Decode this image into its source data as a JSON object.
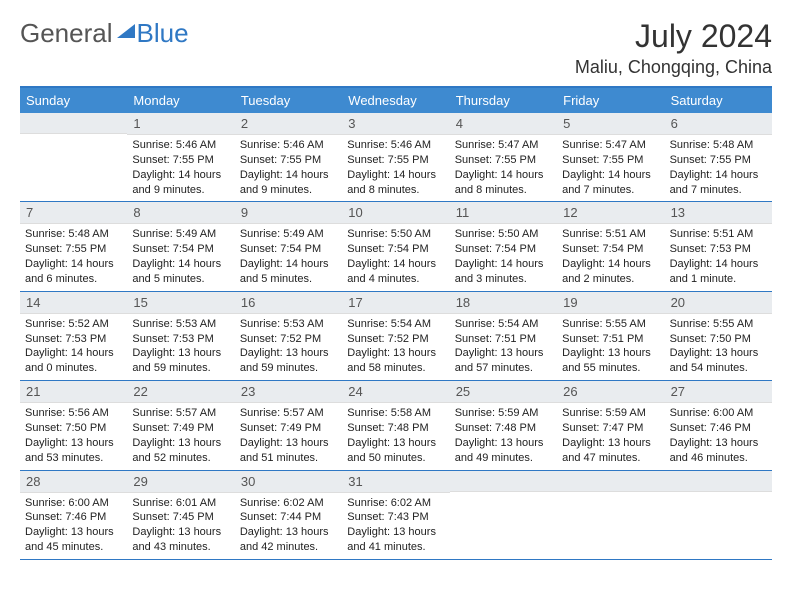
{
  "logo": {
    "word1": "General",
    "word2": "Blue"
  },
  "title": "July 2024",
  "location": "Maliu, Chongqing, China",
  "headers": [
    "Sunday",
    "Monday",
    "Tuesday",
    "Wednesday",
    "Thursday",
    "Friday",
    "Saturday"
  ],
  "colors": {
    "header_bg": "#3e8ad0",
    "border": "#2f78c4",
    "daynum_bg": "#e9ecef"
  },
  "weeks": [
    [
      {
        "n": "",
        "sr": "",
        "ss": "",
        "dl": ""
      },
      {
        "n": "1",
        "sr": "Sunrise: 5:46 AM",
        "ss": "Sunset: 7:55 PM",
        "dl": "Daylight: 14 hours and 9 minutes."
      },
      {
        "n": "2",
        "sr": "Sunrise: 5:46 AM",
        "ss": "Sunset: 7:55 PM",
        "dl": "Daylight: 14 hours and 9 minutes."
      },
      {
        "n": "3",
        "sr": "Sunrise: 5:46 AM",
        "ss": "Sunset: 7:55 PM",
        "dl": "Daylight: 14 hours and 8 minutes."
      },
      {
        "n": "4",
        "sr": "Sunrise: 5:47 AM",
        "ss": "Sunset: 7:55 PM",
        "dl": "Daylight: 14 hours and 8 minutes."
      },
      {
        "n": "5",
        "sr": "Sunrise: 5:47 AM",
        "ss": "Sunset: 7:55 PM",
        "dl": "Daylight: 14 hours and 7 minutes."
      },
      {
        "n": "6",
        "sr": "Sunrise: 5:48 AM",
        "ss": "Sunset: 7:55 PM",
        "dl": "Daylight: 14 hours and 7 minutes."
      }
    ],
    [
      {
        "n": "7",
        "sr": "Sunrise: 5:48 AM",
        "ss": "Sunset: 7:55 PM",
        "dl": "Daylight: 14 hours and 6 minutes."
      },
      {
        "n": "8",
        "sr": "Sunrise: 5:49 AM",
        "ss": "Sunset: 7:54 PM",
        "dl": "Daylight: 14 hours and 5 minutes."
      },
      {
        "n": "9",
        "sr": "Sunrise: 5:49 AM",
        "ss": "Sunset: 7:54 PM",
        "dl": "Daylight: 14 hours and 5 minutes."
      },
      {
        "n": "10",
        "sr": "Sunrise: 5:50 AM",
        "ss": "Sunset: 7:54 PM",
        "dl": "Daylight: 14 hours and 4 minutes."
      },
      {
        "n": "11",
        "sr": "Sunrise: 5:50 AM",
        "ss": "Sunset: 7:54 PM",
        "dl": "Daylight: 14 hours and 3 minutes."
      },
      {
        "n": "12",
        "sr": "Sunrise: 5:51 AM",
        "ss": "Sunset: 7:54 PM",
        "dl": "Daylight: 14 hours and 2 minutes."
      },
      {
        "n": "13",
        "sr": "Sunrise: 5:51 AM",
        "ss": "Sunset: 7:53 PM",
        "dl": "Daylight: 14 hours and 1 minute."
      }
    ],
    [
      {
        "n": "14",
        "sr": "Sunrise: 5:52 AM",
        "ss": "Sunset: 7:53 PM",
        "dl": "Daylight: 14 hours and 0 minutes."
      },
      {
        "n": "15",
        "sr": "Sunrise: 5:53 AM",
        "ss": "Sunset: 7:53 PM",
        "dl": "Daylight: 13 hours and 59 minutes."
      },
      {
        "n": "16",
        "sr": "Sunrise: 5:53 AM",
        "ss": "Sunset: 7:52 PM",
        "dl": "Daylight: 13 hours and 59 minutes."
      },
      {
        "n": "17",
        "sr": "Sunrise: 5:54 AM",
        "ss": "Sunset: 7:52 PM",
        "dl": "Daylight: 13 hours and 58 minutes."
      },
      {
        "n": "18",
        "sr": "Sunrise: 5:54 AM",
        "ss": "Sunset: 7:51 PM",
        "dl": "Daylight: 13 hours and 57 minutes."
      },
      {
        "n": "19",
        "sr": "Sunrise: 5:55 AM",
        "ss": "Sunset: 7:51 PM",
        "dl": "Daylight: 13 hours and 55 minutes."
      },
      {
        "n": "20",
        "sr": "Sunrise: 5:55 AM",
        "ss": "Sunset: 7:50 PM",
        "dl": "Daylight: 13 hours and 54 minutes."
      }
    ],
    [
      {
        "n": "21",
        "sr": "Sunrise: 5:56 AM",
        "ss": "Sunset: 7:50 PM",
        "dl": "Daylight: 13 hours and 53 minutes."
      },
      {
        "n": "22",
        "sr": "Sunrise: 5:57 AM",
        "ss": "Sunset: 7:49 PM",
        "dl": "Daylight: 13 hours and 52 minutes."
      },
      {
        "n": "23",
        "sr": "Sunrise: 5:57 AM",
        "ss": "Sunset: 7:49 PM",
        "dl": "Daylight: 13 hours and 51 minutes."
      },
      {
        "n": "24",
        "sr": "Sunrise: 5:58 AM",
        "ss": "Sunset: 7:48 PM",
        "dl": "Daylight: 13 hours and 50 minutes."
      },
      {
        "n": "25",
        "sr": "Sunrise: 5:59 AM",
        "ss": "Sunset: 7:48 PM",
        "dl": "Daylight: 13 hours and 49 minutes."
      },
      {
        "n": "26",
        "sr": "Sunrise: 5:59 AM",
        "ss": "Sunset: 7:47 PM",
        "dl": "Daylight: 13 hours and 47 minutes."
      },
      {
        "n": "27",
        "sr": "Sunrise: 6:00 AM",
        "ss": "Sunset: 7:46 PM",
        "dl": "Daylight: 13 hours and 46 minutes."
      }
    ],
    [
      {
        "n": "28",
        "sr": "Sunrise: 6:00 AM",
        "ss": "Sunset: 7:46 PM",
        "dl": "Daylight: 13 hours and 45 minutes."
      },
      {
        "n": "29",
        "sr": "Sunrise: 6:01 AM",
        "ss": "Sunset: 7:45 PM",
        "dl": "Daylight: 13 hours and 43 minutes."
      },
      {
        "n": "30",
        "sr": "Sunrise: 6:02 AM",
        "ss": "Sunset: 7:44 PM",
        "dl": "Daylight: 13 hours and 42 minutes."
      },
      {
        "n": "31",
        "sr": "Sunrise: 6:02 AM",
        "ss": "Sunset: 7:43 PM",
        "dl": "Daylight: 13 hours and 41 minutes."
      },
      {
        "n": "",
        "sr": "",
        "ss": "",
        "dl": ""
      },
      {
        "n": "",
        "sr": "",
        "ss": "",
        "dl": ""
      },
      {
        "n": "",
        "sr": "",
        "ss": "",
        "dl": ""
      }
    ]
  ]
}
